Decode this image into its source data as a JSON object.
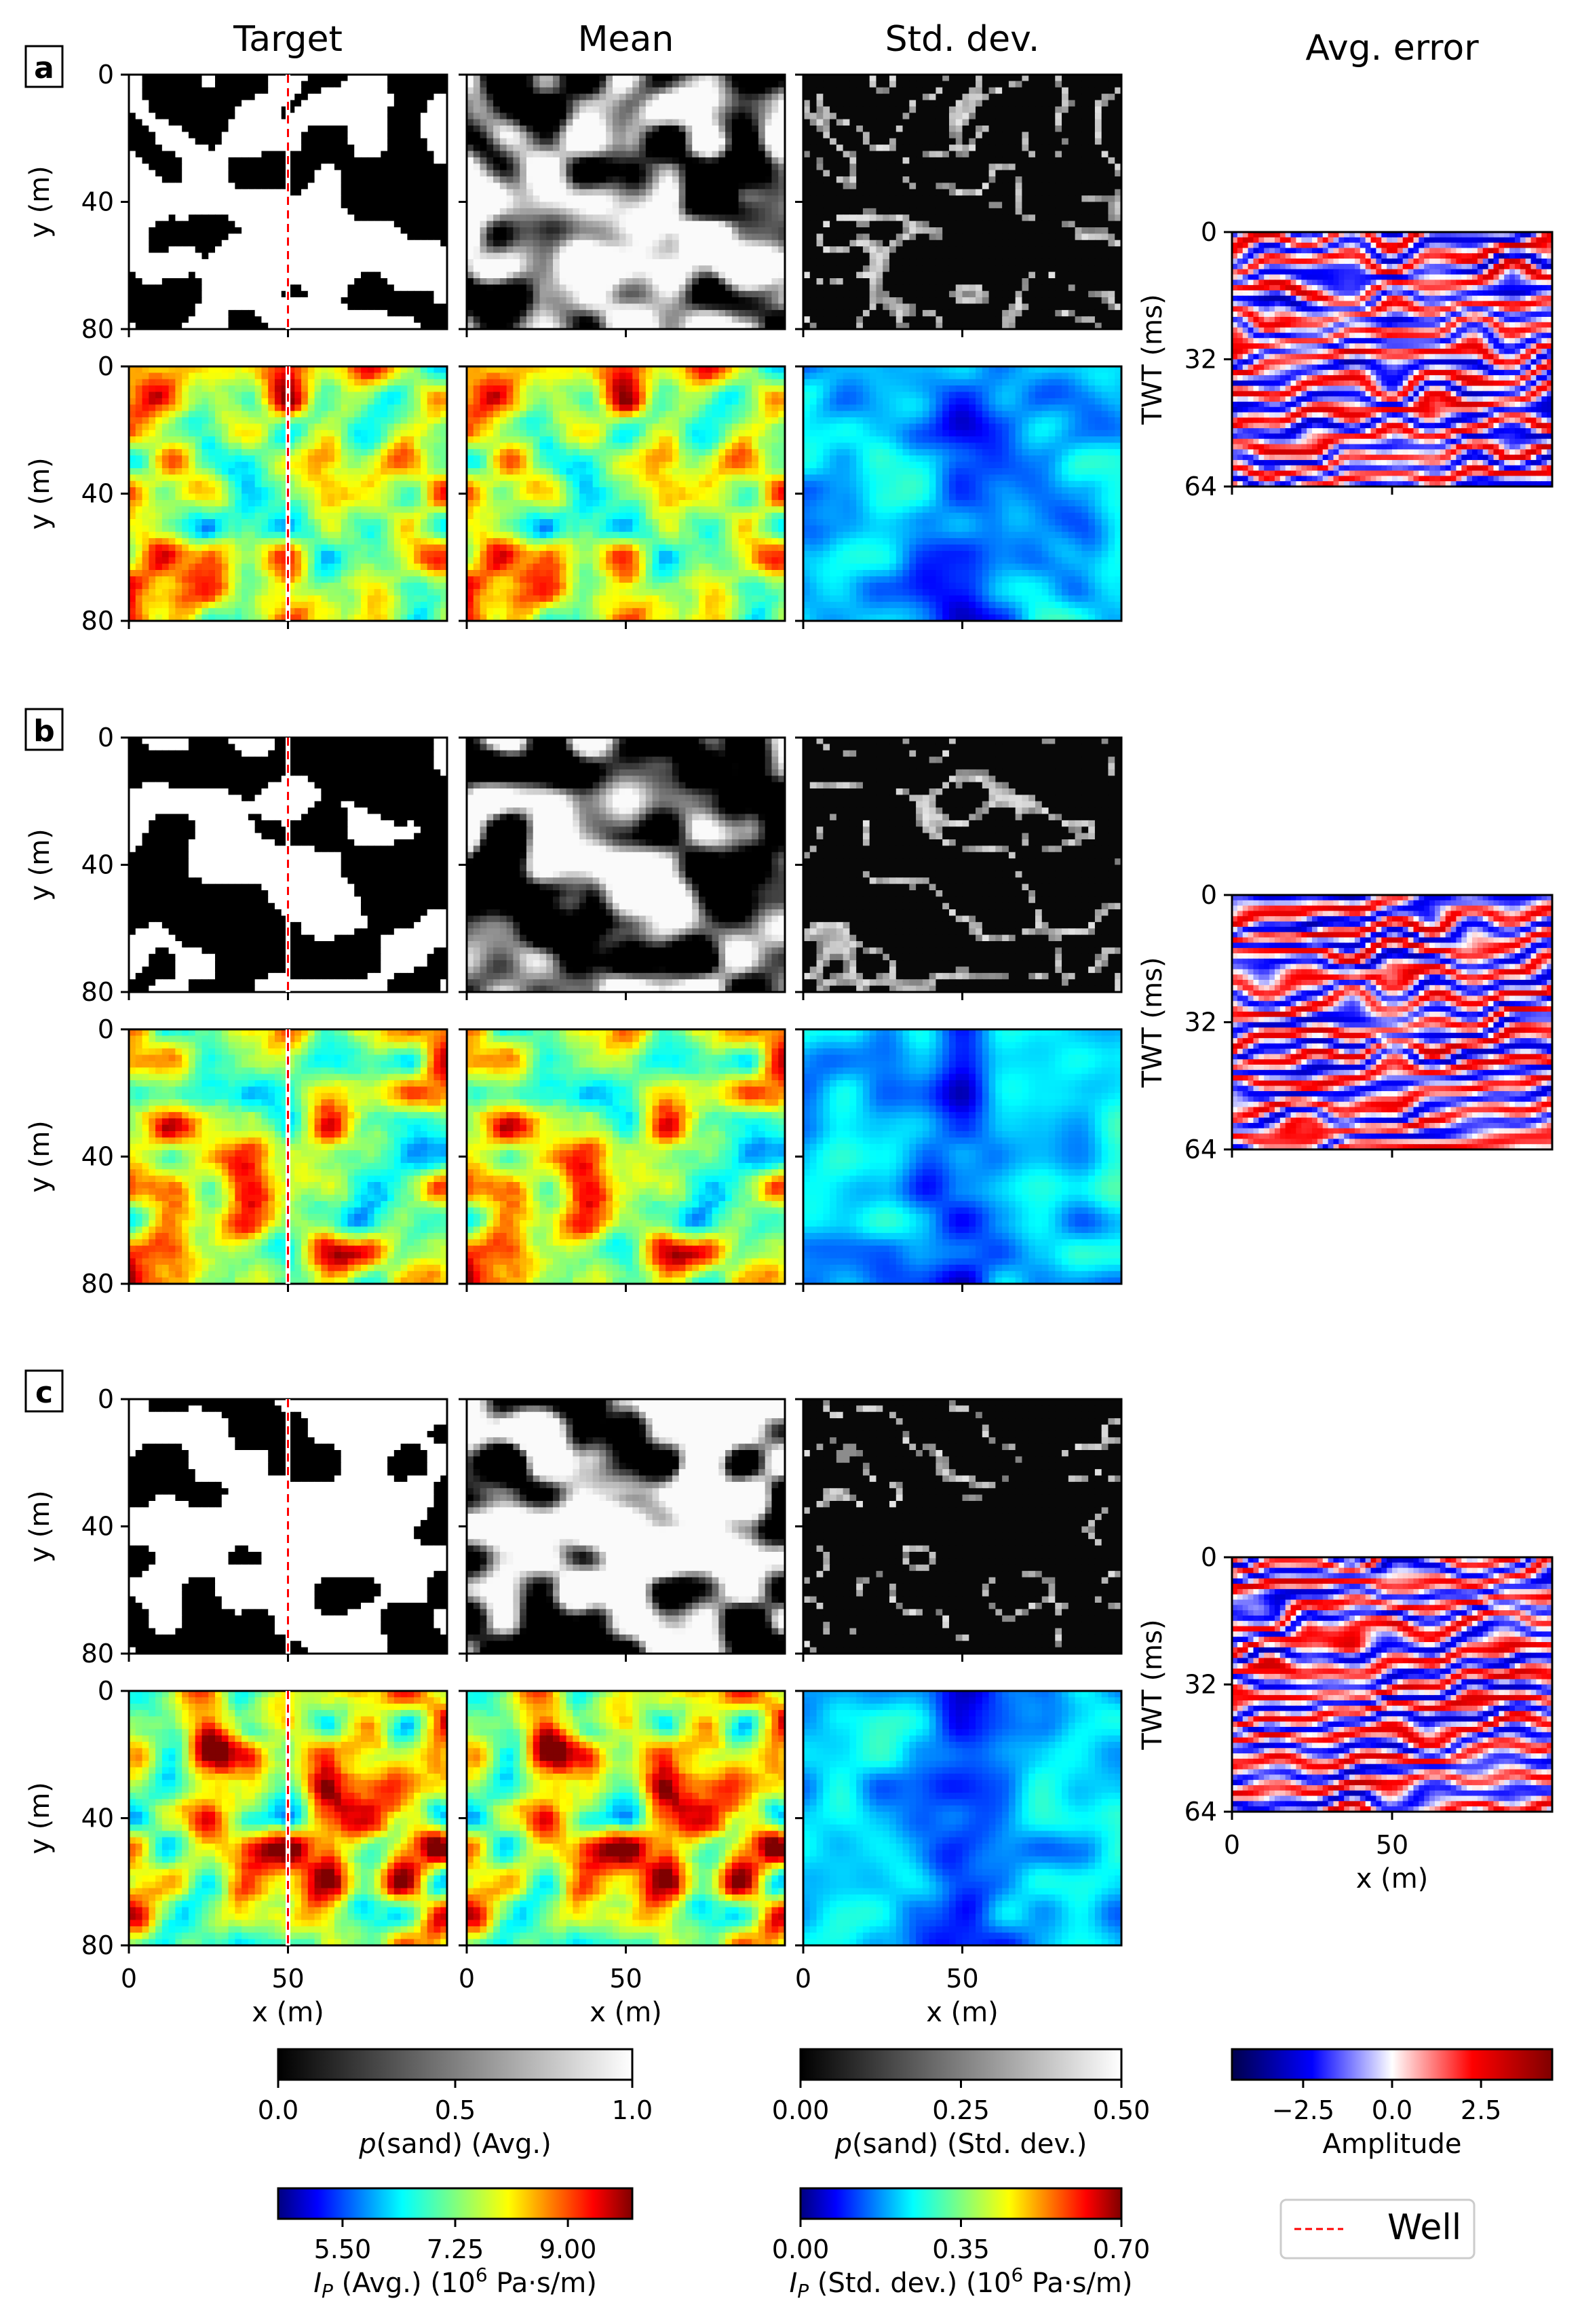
{
  "chart_data": {
    "type": "heatmap",
    "column_titles": [
      "Target",
      "Mean",
      "Std. dev.",
      "Avg. error"
    ],
    "panels": [
      "a",
      "b",
      "c"
    ],
    "rows_per_panel": [
      "p(sand)",
      "I_P"
    ],
    "x_axis": {
      "label": "x (m)",
      "ticks": [
        "0",
        "50"
      ],
      "range": [
        0,
        100
      ]
    },
    "y_axis": {
      "label": "y (m)",
      "ticks": [
        "0",
        "40",
        "80"
      ],
      "range": [
        0,
        80
      ],
      "inverted": true
    },
    "error_axis": {
      "ylabel": "TWT (ms)",
      "yticks": [
        "0",
        "32",
        "64"
      ],
      "yrange": [
        0,
        64
      ],
      "xlabel": "x (m)",
      "xticks": [
        "0",
        "50"
      ]
    },
    "well_x": 50,
    "colorbars": [
      {
        "id": "psand_avg",
        "label_pre": "p",
        "label_post": "(sand) (Avg.)",
        "cmap": "gray",
        "ticks": [
          "0.0",
          "0.5",
          "1.0"
        ],
        "range": [
          0,
          1
        ]
      },
      {
        "id": "psand_std",
        "label_pre": "p",
        "label_post": "(sand) (Std. dev.)",
        "cmap": "gray",
        "ticks": [
          "0.00",
          "0.25",
          "0.50"
        ],
        "range": [
          0,
          0.5
        ]
      },
      {
        "id": "ip_avg",
        "label_pre": "I",
        "label_sub": "P",
        "label_post": " (Avg.) (10",
        "label_sup": "6",
        "label_tail": " Pa·s/m)",
        "cmap": "jet",
        "ticks": [
          "5.50",
          "7.25",
          "9.00"
        ],
        "range": [
          4.5,
          10
        ]
      },
      {
        "id": "ip_std",
        "label_pre": "I",
        "label_sub": "P",
        "label_post": " (Std. dev.) (10",
        "label_sup": "6",
        "label_tail": " Pa·s/m)",
        "cmap": "jet",
        "ticks": [
          "0.00",
          "0.35",
          "0.70"
        ],
        "range": [
          0,
          0.7
        ]
      },
      {
        "id": "amp",
        "label": "Amplitude",
        "cmap": "seismic",
        "ticks": [
          "−2.5",
          "0.0",
          "2.5"
        ],
        "range": [
          -4.5,
          4.5
        ]
      }
    ],
    "legend": {
      "entries": [
        {
          "label": "Well",
          "color": "#ff0000",
          "style": "dashed"
        }
      ],
      "placement": "bottom-right"
    }
  }
}
